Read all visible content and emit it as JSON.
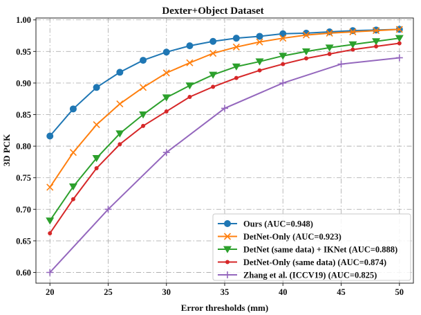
{
  "chart_data": {
    "type": "line",
    "title": "Dexter+Object Dataset",
    "xlabel": "Error thresholds (mm)",
    "ylabel": "3D PCK",
    "xlim": [
      18.8,
      51.2
    ],
    "ylim": [
      0.583,
      1.003
    ],
    "xticks": [
      20,
      25,
      30,
      35,
      40,
      45,
      50
    ],
    "yticks": [
      0.6,
      0.65,
      0.7,
      0.75,
      0.8,
      0.85,
      0.9,
      0.95,
      1.0
    ],
    "xtick_labels": [
      "20",
      "25",
      "30",
      "35",
      "40",
      "45",
      "50"
    ],
    "ytick_labels": [
      "0.60",
      "0.65",
      "0.70",
      "0.75",
      "0.80",
      "0.85",
      "0.90",
      "0.95",
      "1.00"
    ],
    "grid": true,
    "legend_position": "bottom-right",
    "series": [
      {
        "name": "Ours (AUC=0.948)",
        "color": "#1f77b4",
        "marker": "circle",
        "x": [
          20,
          22,
          24,
          26,
          28,
          30,
          32,
          34,
          36,
          38,
          40,
          42,
          44,
          46,
          48,
          50
        ],
        "y": [
          0.816,
          0.859,
          0.893,
          0.917,
          0.936,
          0.949,
          0.959,
          0.966,
          0.971,
          0.974,
          0.978,
          0.979,
          0.981,
          0.983,
          0.984,
          0.985
        ]
      },
      {
        "name": "DetNet-Only (AUC=0.923)",
        "color": "#ff7f0e",
        "marker": "x",
        "x": [
          20,
          22,
          24,
          26,
          28,
          30,
          32,
          34,
          36,
          38,
          40,
          42,
          44,
          46,
          48,
          50
        ],
        "y": [
          0.735,
          0.79,
          0.834,
          0.867,
          0.893,
          0.916,
          0.932,
          0.947,
          0.957,
          0.965,
          0.971,
          0.976,
          0.979,
          0.981,
          0.983,
          0.985
        ]
      },
      {
        "name": "DetNet (same data) + IKNet (AUC=0.888)",
        "color": "#2ca02c",
        "marker": "triangle-down",
        "x": [
          20,
          22,
          24,
          26,
          28,
          30,
          32,
          34,
          36,
          38,
          40,
          42,
          44,
          46,
          48,
          50
        ],
        "y": [
          0.682,
          0.736,
          0.781,
          0.82,
          0.85,
          0.877,
          0.896,
          0.913,
          0.926,
          0.934,
          0.943,
          0.95,
          0.956,
          0.961,
          0.966,
          0.971
        ]
      },
      {
        "name": "DetNet-Only (same data) (AUC=0.874)",
        "color": "#d62728",
        "marker": "dot",
        "x": [
          20,
          22,
          24,
          26,
          28,
          30,
          32,
          34,
          36,
          38,
          40,
          42,
          44,
          46,
          48,
          50
        ],
        "y": [
          0.662,
          0.716,
          0.765,
          0.803,
          0.832,
          0.855,
          0.878,
          0.894,
          0.908,
          0.92,
          0.93,
          0.939,
          0.946,
          0.953,
          0.958,
          0.963
        ]
      },
      {
        "name": "Zhang et al. (ICCV19) (AUC=0.825)",
        "color": "#9467bd",
        "marker": "plus",
        "x": [
          20,
          25,
          30,
          35,
          40,
          45,
          50
        ],
        "y": [
          0.6,
          0.7,
          0.79,
          0.86,
          0.9,
          0.93,
          0.94
        ]
      }
    ]
  }
}
